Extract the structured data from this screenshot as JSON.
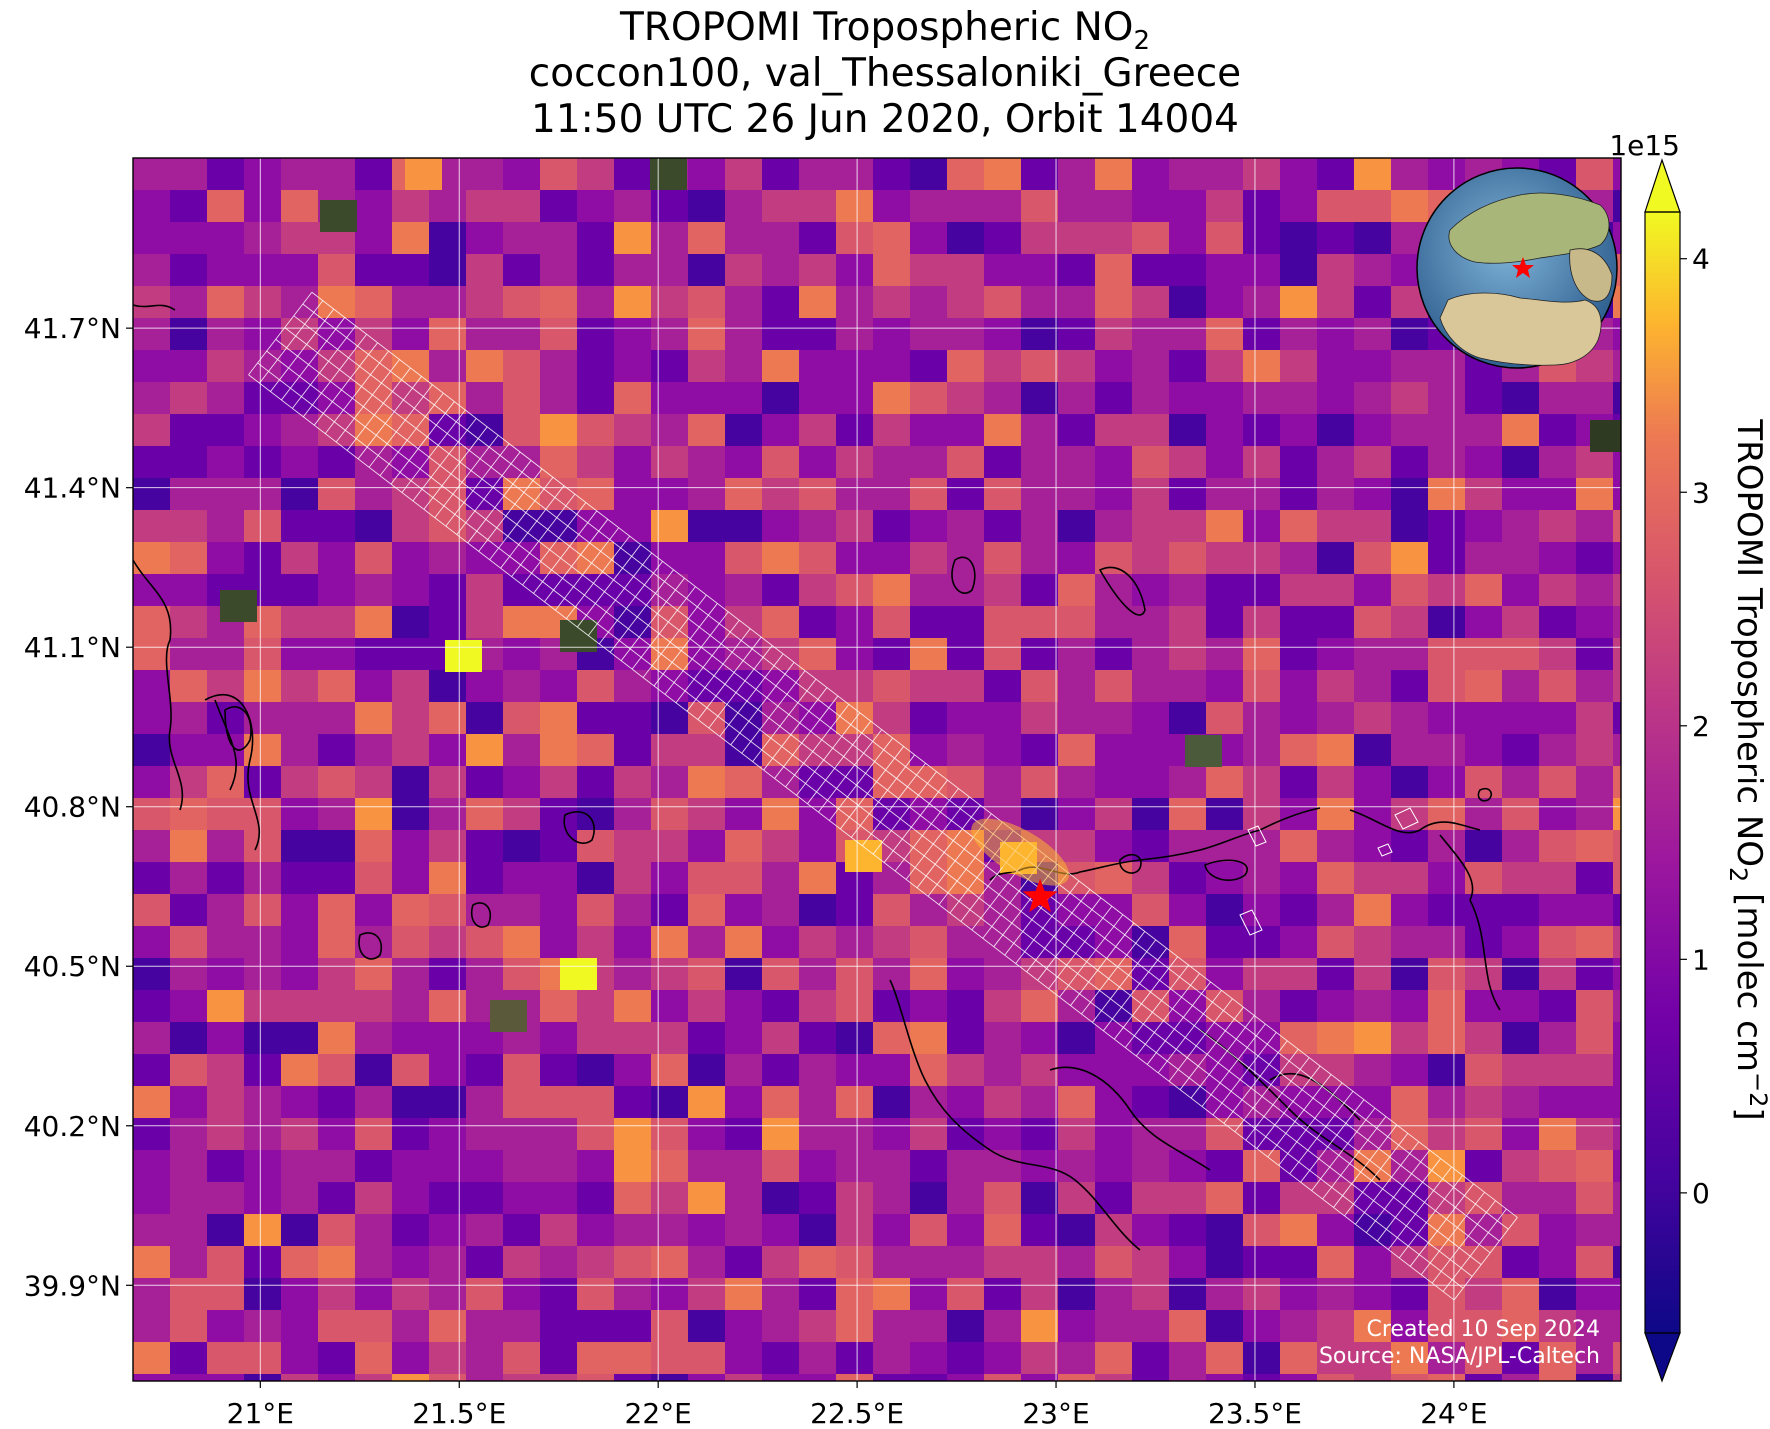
{
  "title": {
    "line1": "TROPOMI Tropospheric NO",
    "line1_sub": "2",
    "line2": "coccon100, val_Thessaloniki_Greece",
    "line3": "11:50 UTC 26 Jun 2020, Orbit 14004"
  },
  "map": {
    "lon_range": [
      20.68,
      24.42
    ],
    "lat_range": [
      39.72,
      42.02
    ],
    "lon_ticks": [
      {
        "value": 21.0,
        "label": "21°E"
      },
      {
        "value": 21.5,
        "label": "21.5°E"
      },
      {
        "value": 22.0,
        "label": "22°E"
      },
      {
        "value": 22.5,
        "label": "22.5°E"
      },
      {
        "value": 23.0,
        "label": "23°E"
      },
      {
        "value": 23.5,
        "label": "23.5°E"
      },
      {
        "value": 24.0,
        "label": "24°E"
      }
    ],
    "lat_ticks": [
      {
        "value": 41.7,
        "label": "41.7°N"
      },
      {
        "value": 41.4,
        "label": "41.4°N"
      },
      {
        "value": 41.1,
        "label": "41.1°N"
      },
      {
        "value": 40.8,
        "label": "40.8°N"
      },
      {
        "value": 40.5,
        "label": "40.5°N"
      },
      {
        "value": 40.2,
        "label": "40.2°N"
      },
      {
        "value": 39.9,
        "label": "39.9°N"
      }
    ],
    "gridlines": true,
    "site_marker": {
      "lon": 22.96,
      "lat": 40.63,
      "symbol": "star",
      "color": "#ff0000"
    },
    "swath": {
      "start": {
        "lon": 21.05,
        "lat": 41.69
      },
      "end": {
        "lon": 24.08,
        "lat": 39.95
      },
      "color": "#ffffff"
    },
    "colormap": "plasma"
  },
  "colorbar": {
    "multiplier": "1e15",
    "ticks": [
      {
        "value": 0,
        "label": "0"
      },
      {
        "value": 1,
        "label": "1"
      },
      {
        "value": 2,
        "label": "2"
      },
      {
        "value": 3,
        "label": "3"
      },
      {
        "value": 4,
        "label": "4"
      }
    ],
    "range": [
      -0.6,
      4.2
    ],
    "label_pre": "TROPOMI Tropospheric NO",
    "label_sub": "2",
    "label_post": " [molec cm",
    "label_sup": "−2",
    "label_end": "]"
  },
  "credits": {
    "line1": "Created 10 Sep 2024",
    "line2": "Source: NASA/JPL-Caltech"
  },
  "colors": {
    "star": "#ff0000",
    "swath": "#ffffff",
    "gridline": "#ffffff",
    "coast": "#000000"
  }
}
